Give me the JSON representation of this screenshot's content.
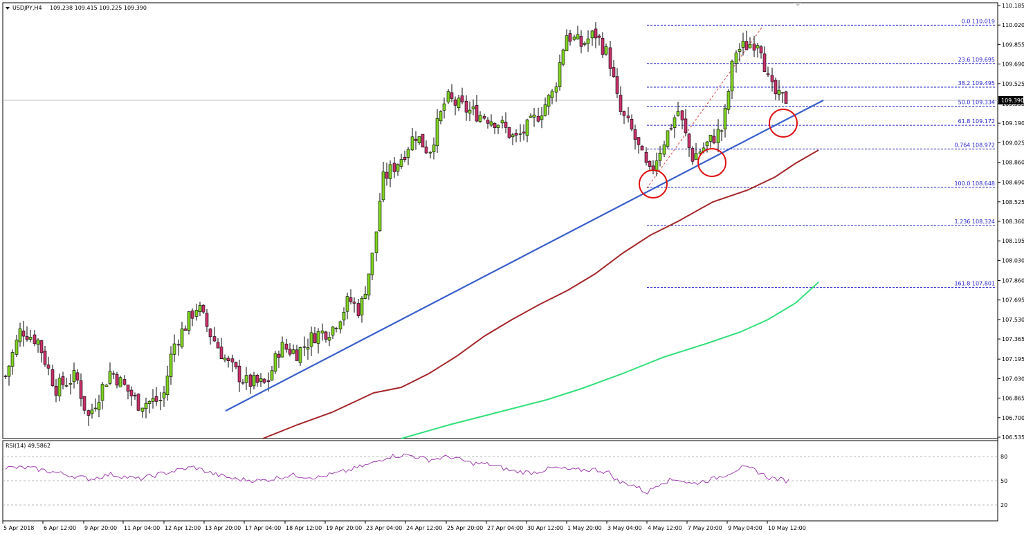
{
  "header": {
    "symbol": "USDJPY,H4",
    "ohlc": "109.238 109.415 109.225 109.390"
  },
  "price_panel": {
    "current_price": "109.390",
    "price_labels": [
      "110.185",
      "110.020",
      "109.855",
      "109.690",
      "109.525",
      "109.355",
      "109.190",
      "109.025",
      "108.860",
      "108.690",
      "108.525",
      "108.360",
      "108.195",
      "108.030",
      "107.860",
      "107.695",
      "107.530",
      "107.365",
      "107.195",
      "107.030",
      "106.865",
      "106.700",
      "106.535"
    ]
  },
  "rsi_panel": {
    "title": "RSI(14) 49.5862",
    "levels": [
      "80",
      "50",
      "20"
    ]
  },
  "time_axis": [
    "5 Apr 2018",
    "6 Apr 12:00",
    "9 Apr 20:00",
    "11 Apr 04:00",
    "12 Apr 12:00",
    "13 Apr 20:00",
    "17 Apr 04:00",
    "18 Apr 12:00",
    "19 Apr 20:00",
    "23 Apr 04:00",
    "24 Apr 12:00",
    "25 Apr 20:00",
    "27 Apr 04:00",
    "30 Apr 12:00",
    "1 May 20:00",
    "3 May 04:00",
    "4 May 12:00",
    "7 May 20:00",
    "9 May 04:00",
    "10 May 12:00"
  ],
  "colors": {
    "bull_fill": "#7fd321",
    "bear_fill": "#c8306a",
    "wick": "#000000",
    "trendline": "#3a5fcd",
    "ma_red": "#a5262a",
    "ma_green": "#33e07a",
    "fib": "#2020c8",
    "circle": "#e01010",
    "rsi": "#a040b0"
  },
  "chart_data": {
    "type": "candlestick",
    "title": "USDJPY,H4",
    "y_range": [
      106.535,
      110.185
    ],
    "key_points": [
      {
        "time": "9 Apr 20:00",
        "low": 106.63
      },
      {
        "time": "17 Apr 04:00",
        "low": 106.9
      },
      {
        "time": "24 Apr 12:00",
        "high": 109.5
      },
      {
        "time": "1 May 20:00",
        "high": 110.03
      },
      {
        "time": "4 May 12:00",
        "low": 108.648
      },
      {
        "time": "10 May 12:00",
        "high": 110.019
      },
      {
        "time": "10 May 12:00",
        "close": 109.39
      }
    ],
    "fibonacci": [
      {
        "level": "0.0",
        "price": "110.019"
      },
      {
        "level": "23.6",
        "price": "109.695"
      },
      {
        "level": "38.2",
        "price": "109.495"
      },
      {
        "level": "50.0",
        "price": "109.334"
      },
      {
        "level": "61.8",
        "price": "109.172"
      },
      {
        "level": "0.764",
        "price": "108.972"
      },
      {
        "level": "100.0",
        "price": "108.648"
      },
      {
        "level": "1.236",
        "price": "108.324"
      },
      {
        "level": "161.8",
        "price": "107.801"
      }
    ],
    "indicators": [
      {
        "name": "moving average (red)",
        "end_value": 108.97
      },
      {
        "name": "moving average (green)",
        "end_value": 107.86
      },
      {
        "name": "RSI(14)",
        "value": 49.5862,
        "levels": [
          80,
          50,
          20
        ]
      }
    ]
  }
}
